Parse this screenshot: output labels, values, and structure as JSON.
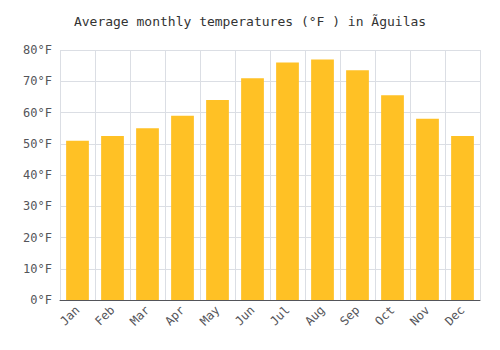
{
  "chart_data": {
    "type": "bar",
    "title": "Average monthly temperatures (°F ) in Ãguilas",
    "categories": [
      "Jan",
      "Feb",
      "Mar",
      "Apr",
      "May",
      "Jun",
      "Jul",
      "Aug",
      "Sep",
      "Oct",
      "Nov",
      "Dec"
    ],
    "values": [
      51,
      52.5,
      55,
      59,
      64,
      71,
      76,
      77,
      73.5,
      65.5,
      58,
      52.5
    ],
    "color": "#FFC125",
    "ylim": [
      0,
      80
    ],
    "yticks": [
      {
        "value": 0,
        "label": "0°F"
      },
      {
        "value": 10,
        "label": "10°F"
      },
      {
        "value": 20,
        "label": "20°F"
      },
      {
        "value": 30,
        "label": "30°F"
      },
      {
        "value": 40,
        "label": "40°F"
      },
      {
        "value": 50,
        "label": "50°F"
      },
      {
        "value": 60,
        "label": "60°F"
      },
      {
        "value": 70,
        "label": "70°F"
      },
      {
        "value": 80,
        "label": "80°F"
      }
    ],
    "grid": true
  }
}
